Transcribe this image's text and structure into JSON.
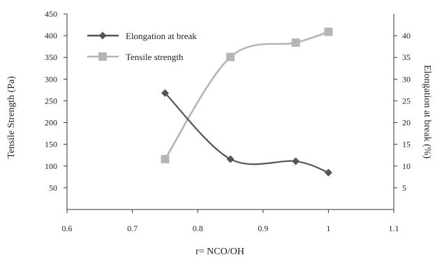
{
  "chart_data": {
    "type": "line",
    "xlabel": "r= NCO/OH",
    "ylabel_left": "Tensile Strength (Pa)",
    "ylabel_right": "Elongation at break (%)",
    "xlim": [
      0.6,
      1.1
    ],
    "ylim_left": [
      0,
      450
    ],
    "ylim_right": [
      0,
      45
    ],
    "x_ticks": [
      "0.6",
      "0.7",
      "0.8",
      "0.9",
      "1",
      "1.1"
    ],
    "y_left_ticks": [
      "50",
      "100",
      "150",
      "200",
      "250",
      "300",
      "350",
      "400",
      "450"
    ],
    "y_right_ticks": [
      "5",
      "10",
      "15",
      "20",
      "25",
      "30",
      "35",
      "40"
    ],
    "grid": false,
    "legend_position": "top-left",
    "series": [
      {
        "name": "Elongation at break",
        "axis": "right",
        "marker": "diamond",
        "color": "#555555",
        "x": [
          0.75,
          0.85,
          0.95,
          1.0
        ],
        "y": [
          26.8,
          11.6,
          11.1,
          8.5
        ]
      },
      {
        "name": "Tensile strength",
        "axis": "left",
        "marker": "square",
        "color": "#b5b5b5",
        "x": [
          0.75,
          0.85,
          0.95,
          1.0
        ],
        "y": [
          116,
          351,
          384,
          409
        ]
      }
    ]
  }
}
